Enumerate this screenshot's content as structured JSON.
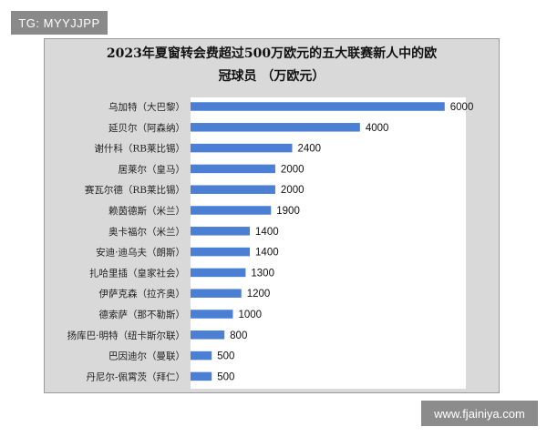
{
  "watermark_top_left": "TG: MYYJJPP",
  "watermark_bottom_right": "www.fjainiya.com",
  "chart_data": {
    "type": "bar",
    "orientation": "horizontal",
    "title_line1": "2023年夏窗转会费超过500万欧元的五大联赛新人中的欧",
    "title_line2": "冠球员 （万欧元）",
    "categories": [
      "乌加特（大巴黎）",
      "延贝尔（阿森纳）",
      "谢什科（RB莱比锡）",
      "居莱尔（皇马）",
      "赛瓦尔德（RB莱比锡）",
      "赖茵德斯（米兰）",
      "奥卡福尔（米兰）",
      "安迪·迪乌夫（朗斯）",
      "扎哈里插（皇家社会）",
      "伊萨克森（拉齐奥）",
      "德索萨（那不勒斯）",
      "扬库巴·明特（纽卡斯尔联）",
      "巴因迪尔（曼联）",
      "丹尼尔-佩霄茨（拜仁）"
    ],
    "values": [
      6000,
      4000,
      2400,
      2000,
      2000,
      1900,
      1400,
      1400,
      1300,
      1200,
      1000,
      800,
      500,
      500
    ],
    "xlim": [
      0,
      6500
    ],
    "bar_color": "#4a7fd4",
    "legend": "none",
    "grid": false
  }
}
